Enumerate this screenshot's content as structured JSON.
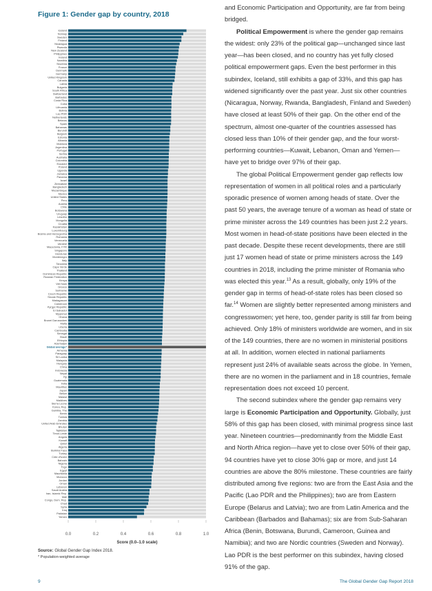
{
  "chart_data": {
    "type": "hbar",
    "title": "Figure 1: Gender gap by country, 2018",
    "categories": [
      "Iceland",
      "Norway",
      "Sweden",
      "Finland",
      "Nicaragua",
      "Rwanda",
      "New Zealand",
      "Philippines",
      "Ireland",
      "Namibia",
      "Slovenia",
      "France",
      "Denmark",
      "Germany",
      "United Kingdom",
      "Canada",
      "Latvia",
      "Bulgaria",
      "South Africa",
      "Switzerland",
      "Barbados",
      "Costa Rica",
      "Cuba",
      "Lithuania",
      "Bolivia",
      "Lao PDR",
      "Netherlands",
      "Belarus",
      "Spain",
      "Bahamas",
      "Burundi",
      "Belgium",
      "Estonia",
      "Albania",
      "Moldova",
      "Argentina",
      "Portugal",
      "Serbia",
      "Australia",
      "Colombia",
      "Ecuador",
      "Poland",
      "Uganda",
      "Jamaica",
      "Panama",
      "Israel",
      "Zimbabwe",
      "Bangladesh",
      "Mozambique",
      "Mexico",
      "United States",
      "Peru",
      "Austria",
      "Chile",
      "Botswana",
      "Uruguay",
      "Lesotho",
      "Mongolia",
      "Croatia",
      "Kazakhstan",
      "Luxembourg",
      "Bosnia and Herzegovina",
      "Romania",
      "Venezuela",
      "Ukraine",
      "Macedonia, FYR",
      "Singapore",
      "Honduras",
      "Montenegro",
      "Italy",
      "Tanzania",
      "Cape Verde",
      "Thailand",
      "Dominican Republic",
      "Russian Federation",
      "Kenya",
      "Viet Nam",
      "Greece",
      "Suriname",
      "Czech Republic",
      "Slovak Republic",
      "Madagascar",
      "Cameroon",
      "Kyrgyz Republic",
      "El Salvador",
      "Myanmar",
      "Ghana",
      "Brunei Darussalam",
      "Malta",
      "Liberia",
      "Cambodia",
      "Senegal",
      "Brazil",
      "Ethiopia",
      "Azerbaijan",
      "Global average*",
      "Armenia",
      "Paraguay",
      "Sri Lanka",
      "Malaysia",
      "Hungary",
      "China",
      "Indonesia",
      "Nepal",
      "Fiji",
      "Guatemala",
      "India",
      "Mauritius",
      "Japan",
      "Belize",
      "Malawi",
      "Maldives",
      "Sierra Leone",
      "Korea, Rep.",
      "Gambia, The",
      "Benin",
      "Tunisia",
      "Zambia",
      "United Arab Emirates",
      "Bhutan",
      "Tajikistan",
      "Timor-Leste",
      "Angola",
      "Kuwait",
      "Qatar",
      "Algeria",
      "Burkina Faso",
      "Turkey",
      "Côte d'Ivoire",
      "Bahrain",
      "Nigeria",
      "Togo",
      "Egypt",
      "Mauritania",
      "Morocco",
      "Jordan",
      "Oman",
      "Lebanon",
      "Saudi Arabia",
      "Iran, Islamic Rep.",
      "Mali",
      "Congo, Dem. Rep.",
      "Chad",
      "Syria",
      "Iraq",
      "Pakistan",
      "Yemen"
    ],
    "values": [
      0.858,
      0.835,
      0.822,
      0.821,
      0.809,
      0.804,
      0.801,
      0.799,
      0.796,
      0.789,
      0.784,
      0.779,
      0.778,
      0.776,
      0.774,
      0.771,
      0.758,
      0.756,
      0.755,
      0.755,
      0.749,
      0.749,
      0.749,
      0.749,
      0.747,
      0.747,
      0.747,
      0.747,
      0.746,
      0.741,
      0.741,
      0.738,
      0.734,
      0.734,
      0.733,
      0.733,
      0.732,
      0.73,
      0.73,
      0.729,
      0.729,
      0.728,
      0.724,
      0.724,
      0.722,
      0.721,
      0.721,
      0.721,
      0.721,
      0.721,
      0.72,
      0.72,
      0.718,
      0.717,
      0.715,
      0.714,
      0.714,
      0.713,
      0.712,
      0.712,
      0.712,
      0.712,
      0.711,
      0.709,
      0.708,
      0.707,
      0.707,
      0.705,
      0.705,
      0.704,
      0.702,
      0.702,
      0.702,
      0.701,
      0.701,
      0.7,
      0.698,
      0.696,
      0.695,
      0.693,
      0.693,
      0.691,
      0.69,
      0.689,
      0.688,
      0.687,
      0.687,
      0.686,
      0.686,
      0.685,
      0.684,
      0.683,
      0.681,
      0.68,
      0.68,
      0.68,
      0.678,
      0.678,
      0.676,
      0.676,
      0.674,
      0.673,
      0.672,
      0.671,
      0.671,
      0.668,
      0.665,
      0.664,
      0.662,
      0.662,
      0.661,
      0.66,
      0.659,
      0.657,
      0.655,
      0.652,
      0.648,
      0.647,
      0.642,
      0.638,
      0.638,
      0.637,
      0.633,
      0.63,
      0.629,
      0.629,
      0.628,
      0.628,
      0.621,
      0.62,
      0.619,
      0.614,
      0.614,
      0.607,
      0.605,
      0.605,
      0.603,
      0.602,
      0.59,
      0.589,
      0.584,
      0.584,
      0.58,
      0.568,
      0.551,
      0.55,
      0.499
    ],
    "color": "#1c5c79",
    "track_color": "#dcdcdc",
    "highlight": 95,
    "highlight_color": "#5a5a5a",
    "xlim": [
      0,
      1
    ],
    "xticks": [
      {
        "value": 0,
        "label": "0.0"
      },
      0.2,
      0.4,
      0.6,
      0.8,
      {
        "value": 1,
        "label": "1.0"
      }
    ],
    "xlabel": "Score (0.0–1.0 scale)",
    "source_label": "Source:",
    "source": "Global Gender Gap Index 2018.",
    "note": "* Population-weighted average"
  },
  "body": {
    "paragraphs": [
      [
        "and Economic Participation and Opportunity, are far from being bridged."
      ],
      [
        {
          "bold": "Political Empowerment"
        },
        " is where the gender gap remains the widest: only 23% of the political gap—unchanged since last year—has been closed, and no country has yet fully closed political empowerment gaps. Even the best performer in this subindex, Iceland, still exhibits a gap of 33%, and this gap has widened significantly over the past year. Just six other countries (Nicaragua, Norway, Rwanda, Bangladesh, Finland and Sweden) have closed at least 50% of their gap. On the other end of the spectrum, almost one-quarter of the countries assessed has closed less than 10% of their gender gap, and the four worst-performing countries—Kuwait, Lebanon, Oman and Yemen—have yet to bridge over 97% of their gap."
      ],
      [
        "The global Political Empowerment gender gap reflects low representation of women in all political roles and a particularly sporadic presence of women among heads of state. Over the past 50 years, the average tenure of a woman as head of state or prime minister across the 149 countries has been just 2.2 years. Most women in head-of-state positions have been elected in the past decade. Despite these recent developments, there are still just 17 women head of state or prime ministers across the 149 countries in 2018, including the prime minister of Romania who was elected this year.",
        {
          "sup": "13"
        },
        " As a result, globally, only 19% of the gender gap in terms of head-of-state roles has been closed so far.",
        {
          "sup": "14"
        },
        " Women are slightly better represented among ministers and congresswomen; yet here, too, gender parity is still far from being achieved. Only 18% of ministers worldwide are women, and in six of the 149 countries, there are no women in ministerial positions at all. In addition, women elected in national parliaments represent just 24% of available seats across the globe. In Yemen, there are no women in the parliament and in 18 countries, female representation does not exceed 10 percent."
      ],
      [
        "The second subindex where the gender gap remains very large is ",
        {
          "bold": "Economic Participation and Opportunity."
        },
        " Globally, just 58% of this gap has been closed, with minimal progress since last year. Nineteen countries—predominantly from the Middle East and North Africa region—have yet to close over 50% of their gap, 94 countries have yet to close 30% gap or more, and just 14 countries are above the 80% milestone. These countries are fairly distributed among five regions: two are from the East Asia and the Pacific (Lao PDR and the Philippines); two are from Eastern Europe (Belarus and Latvia); two are from Latin America and the Caribbean (Barbados and Bahamas); six are from Sub-Saharan Africa (Benin, Botswana, Burundi, Cameroon, Guinea and Namibia); and two are Nordic countries (Sweden and Norway). Lao PDR is the best performer on this subindex, having closed 91% of the gap."
      ]
    ]
  },
  "footer": {
    "page": "9",
    "report": "The Global Gender Gap Report 2018"
  }
}
